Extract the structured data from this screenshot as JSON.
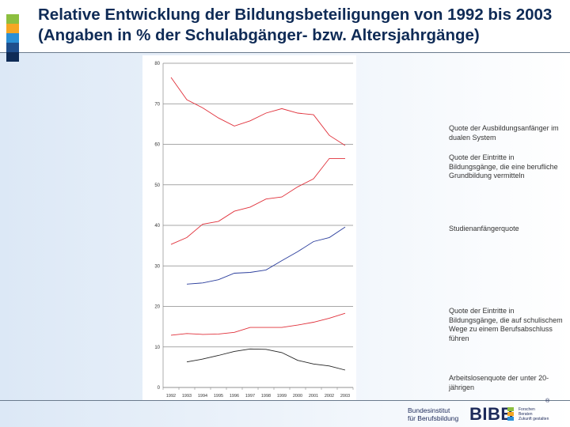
{
  "slide": {
    "title": "Relative Entwicklung der Bildungsbeteiligungen von 1992 bis 2003 (Angaben in % der Schulabgänger- bzw. Altersjahrgänge)",
    "accent_colors": [
      "#8cbf3f",
      "#f5a623",
      "#2a8fd6",
      "#1f4e8c",
      "#0f2b56"
    ]
  },
  "chart_data": {
    "type": "line",
    "title": "",
    "xlabel": "",
    "ylabel": "",
    "ylim": [
      0,
      80
    ],
    "yticks": [
      "0",
      "10",
      "20",
      "30",
      "40",
      "50",
      "60",
      "70",
      "80"
    ],
    "categories": [
      "1992",
      "1993",
      "1994",
      "1995",
      "1996",
      "1997",
      "1998",
      "1999",
      "2000",
      "2001",
      "2002",
      "2003"
    ],
    "grid": true,
    "series": [
      {
        "name": "Quote der Ausbildungsanfänger im dualen System",
        "color": "#e0303a",
        "values": [
          76.5,
          71,
          69,
          66.5,
          64.5,
          65.8,
          67.7,
          68.8,
          67.7,
          67.3,
          62.2,
          59.7
        ]
      },
      {
        "name": "Quote der Eintritte in Bildungsgänge, die eine berufliche Grundbildung vermitteln",
        "color": "#e0303a",
        "values": [
          35.3,
          37,
          40.3,
          41,
          43.5,
          44.5,
          46.5,
          47,
          49.5,
          51.5,
          56.5,
          56.5
        ]
      },
      {
        "name": "Studienanfängerquote",
        "color": "#2a3d9c",
        "values": [
          null,
          25.5,
          25.8,
          26.6,
          28.2,
          28.4,
          29,
          31.3,
          33.5,
          36,
          37,
          39.6
        ]
      },
      {
        "name": "Quote der Eintritte in Bildungsgänge, die auf schulischem Wege zu einem Berufsabschluss führen",
        "color": "#e0303a",
        "values": [
          12.9,
          13.3,
          13.1,
          13.2,
          13.6,
          14.8,
          14.8,
          14.8,
          15.4,
          16.1,
          17.1,
          18.3
        ]
      },
      {
        "name": "Arbeitslosenquote der unter 20-jährigen",
        "color": "#222222",
        "values": [
          null,
          6.3,
          7,
          7.9,
          8.9,
          9.5,
          9.4,
          8.6,
          6.7,
          5.8,
          5.3,
          4.3
        ]
      }
    ]
  },
  "logo": {
    "left_line1": "Bundesinstitut",
    "left_line2": "für Berufsbildung",
    "name": "BIBB",
    "right_line1": "Forschen",
    "right_line2": "Beraten",
    "right_line3": "Zukunft gestalten",
    "registered": "®",
    "bar_colors": [
      "#8cbf3f",
      "#f5a623",
      "#2a8fd6"
    ]
  }
}
